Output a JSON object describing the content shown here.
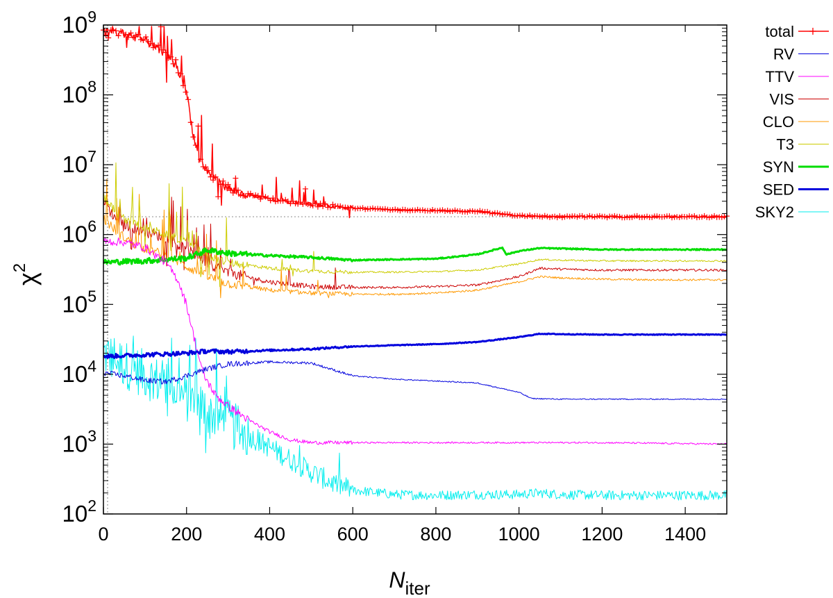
{
  "chart_data": {
    "type": "line",
    "xlabel": "N",
    "xlabel_sub": "iter",
    "ylabel": "χ",
    "ylabel_sup": "2",
    "xlim": [
      0,
      1500
    ],
    "ylim": [
      100,
      1000000000
    ],
    "y_scale": "log",
    "x_ticks": [
      0,
      200,
      400,
      600,
      800,
      1000,
      1200,
      1400
    ],
    "x_tick_labels": [
      "0",
      "200",
      "400",
      "600",
      "800",
      "1000",
      "1200",
      "1400"
    ],
    "y_ticks": [
      100,
      1000,
      10000,
      100000,
      1000000,
      10000000,
      100000000,
      1000000000
    ],
    "y_tick_labels": [
      {
        "base": "10",
        "exp": "2"
      },
      {
        "base": "10",
        "exp": "3"
      },
      {
        "base": "10",
        "exp": "4"
      },
      {
        "base": "10",
        "exp": "5"
      },
      {
        "base": "10",
        "exp": "6"
      },
      {
        "base": "10",
        "exp": "7"
      },
      {
        "base": "10",
        "exp": "8"
      },
      {
        "base": "10",
        "exp": "9"
      }
    ],
    "reference_lines": {
      "horizontal_y": 1800000,
      "vertical_x": 10,
      "style": "dotted",
      "color": "#999999"
    },
    "legend_placement": "right",
    "series": [
      {
        "name": "total",
        "color": "#ff0000",
        "width": 1.5,
        "markers": "plus",
        "noise": 0.06,
        "spikes": true,
        "x": [
          0,
          50,
          100,
          150,
          180,
          200,
          215,
          230,
          250,
          280,
          320,
          400,
          500,
          600,
          700,
          800,
          900,
          1000,
          1100,
          1200,
          1300,
          1400,
          1500
        ],
        "y": [
          820000000,
          760000000,
          600000000,
          380000000,
          220000000,
          110000000,
          30000000,
          12000000,
          8000000,
          5500000,
          4000000,
          3200000,
          2700000,
          2400000,
          2250000,
          2200000,
          2150000,
          1850000,
          1800000,
          1800000,
          1800000,
          1800000,
          1800000
        ]
      },
      {
        "name": "RV",
        "color": "#0000dd",
        "width": 1,
        "noise": 0.04,
        "x": [
          0,
          50,
          100,
          150,
          200,
          250,
          300,
          400,
          500,
          600,
          700,
          800,
          900,
          1000,
          1030,
          1100,
          1200,
          1300,
          1400,
          1500
        ],
        "y": [
          10500,
          9500,
          8200,
          7800,
          9500,
          12000,
          14000,
          15000,
          14500,
          9500,
          8500,
          8000,
          7500,
          5500,
          4500,
          4400,
          4400,
          4400,
          4400,
          4400
        ]
      },
      {
        "name": "TTV",
        "color": "#ff00ff",
        "width": 1,
        "noise": 0.06,
        "x": [
          0,
          50,
          100,
          150,
          180,
          200,
          220,
          240,
          270,
          300,
          350,
          400,
          450,
          500,
          600,
          800,
          1000,
          1200,
          1500
        ],
        "y": [
          800000,
          780000,
          650000,
          400000,
          220000,
          100000,
          30000,
          10000,
          5000,
          3500,
          2200,
          1500,
          1150,
          1050,
          1050,
          1050,
          1050,
          1050,
          1000
        ]
      },
      {
        "name": "VIS",
        "color": "#cc0000",
        "width": 1,
        "noise": 0.08,
        "spikes": true,
        "x": [
          0,
          20,
          40,
          80,
          150,
          200,
          250,
          300,
          400,
          500,
          600,
          700,
          800,
          900,
          1000,
          1050,
          1100,
          1200,
          1300,
          1500
        ],
        "y": [
          3000000,
          2000000,
          1500000,
          1200000,
          900000,
          600000,
          400000,
          280000,
          210000,
          180000,
          175000,
          175000,
          180000,
          190000,
          250000,
          330000,
          320000,
          310000,
          310000,
          310000
        ]
      },
      {
        "name": "CLO",
        "color": "#ff9900",
        "width": 1,
        "noise": 0.07,
        "spikes": true,
        "x": [
          0,
          20,
          40,
          80,
          150,
          200,
          250,
          300,
          400,
          500,
          600,
          700,
          800,
          900,
          1000,
          1050,
          1100,
          1200,
          1300,
          1500
        ],
        "y": [
          1700000,
          1300000,
          1000000,
          700000,
          500000,
          350000,
          250000,
          200000,
          160000,
          145000,
          140000,
          140000,
          145000,
          160000,
          210000,
          250000,
          240000,
          230000,
          225000,
          225000
        ]
      },
      {
        "name": "T3",
        "color": "#cccc00",
        "width": 1,
        "noise": 0.06,
        "spikes": true,
        "x": [
          0,
          20,
          40,
          80,
          150,
          200,
          250,
          300,
          400,
          500,
          600,
          700,
          800,
          900,
          1000,
          1050,
          1100,
          1200,
          1300,
          1500
        ],
        "y": [
          3500000,
          2500000,
          1800000,
          1400000,
          1000000,
          800000,
          500000,
          400000,
          330000,
          300000,
          290000,
          290000,
          295000,
          310000,
          380000,
          440000,
          430000,
          420000,
          420000,
          420000
        ]
      },
      {
        "name": "SYN",
        "color": "#00dd00",
        "width": 3,
        "noise": 0.04,
        "x": [
          0,
          100,
          200,
          250,
          300,
          400,
          500,
          600,
          700,
          800,
          900,
          960,
          970,
          1000,
          1050,
          1100,
          1200,
          1300,
          1500
        ],
        "y": [
          400000,
          420000,
          460000,
          600000,
          540000,
          500000,
          470000,
          430000,
          440000,
          450000,
          520000,
          650000,
          520000,
          580000,
          640000,
          630000,
          610000,
          610000,
          610000
        ]
      },
      {
        "name": "SED",
        "color": "#0000dd",
        "width": 3,
        "noise": 0.03,
        "x": [
          0,
          100,
          200,
          250,
          300,
          400,
          500,
          600,
          700,
          800,
          900,
          1000,
          1050,
          1100,
          1200,
          1300,
          1500
        ],
        "y": [
          18000,
          19000,
          20000,
          21500,
          21000,
          22000,
          23000,
          25000,
          26000,
          27000,
          29000,
          34000,
          38000,
          37500,
          37000,
          37000,
          37000
        ]
      },
      {
        "name": "SKY2",
        "color": "#00eeee",
        "width": 1,
        "noise": 0.35,
        "spikes": true,
        "x": [
          0,
          50,
          100,
          150,
          200,
          250,
          300,
          350,
          400,
          450,
          500,
          550,
          600,
          700,
          800,
          900,
          1000,
          1050,
          1100,
          1200,
          1300,
          1500
        ],
        "y": [
          20000,
          14000,
          10000,
          7000,
          4500,
          3000,
          2000,
          1300,
          900,
          600,
          400,
          280,
          220,
          190,
          185,
          190,
          190,
          200,
          190,
          185,
          185,
          185
        ]
      }
    ]
  }
}
